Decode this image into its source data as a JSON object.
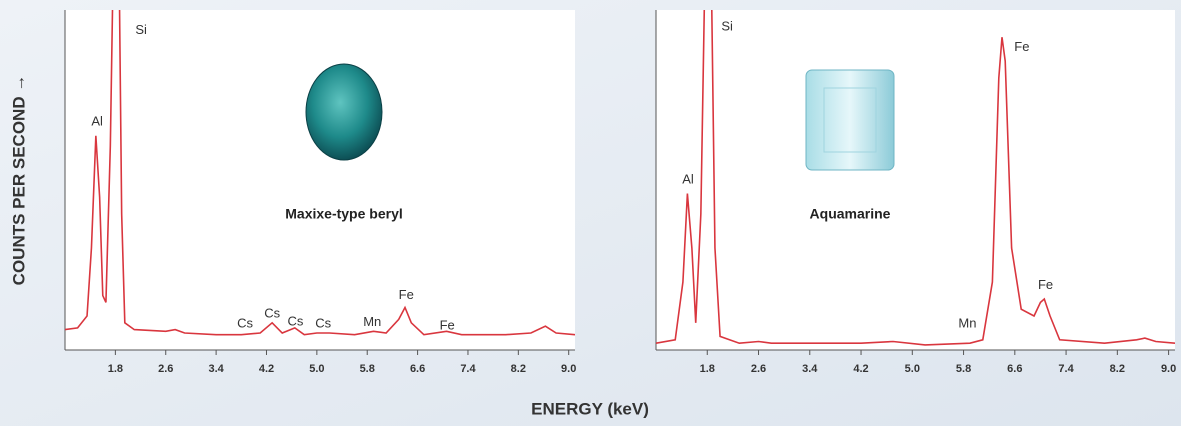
{
  "xlabel": "ENERGY (keV)",
  "ylabel": "COUNTS PER SECOND →",
  "chart_data": [
    {
      "type": "line",
      "title": "Maxixe-type beryl",
      "color": "#d9363e",
      "xlim": [
        1.0,
        9.1
      ],
      "ylim": [
        0,
        100
      ],
      "xticks": [
        1.8,
        2.6,
        3.4,
        4.2,
        {
          "value": 5,
          "label": "5.0"
        },
        5.8,
        6.6,
        7.4,
        8.2,
        {
          "value": 9,
          "label": "9.0"
        }
      ],
      "x": [
        1.0,
        1.2,
        1.35,
        1.42,
        1.49,
        1.55,
        1.6,
        1.65,
        1.72,
        1.78,
        1.85,
        1.9,
        1.95,
        2.1,
        2.6,
        2.75,
        2.9,
        3.4,
        3.8,
        4.1,
        4.29,
        4.45,
        4.65,
        4.8,
        5.0,
        5.2,
        5.6,
        5.9,
        6.1,
        6.3,
        6.4,
        6.5,
        6.7,
        7.06,
        7.3,
        8.0,
        8.4,
        8.63,
        8.8,
        9.1
      ],
      "values": [
        6,
        6.5,
        10,
        30,
        63,
        45,
        16,
        14,
        60,
        130,
        130,
        40,
        8,
        6,
        5.5,
        6,
        5,
        4.5,
        4.5,
        5,
        8,
        5,
        6.5,
        4.5,
        5,
        5,
        4.5,
        5.5,
        5,
        9,
        12.5,
        8,
        4.5,
        5.5,
        4.5,
        4.5,
        5,
        7,
        5,
        4.5
      ],
      "annotations": [
        {
          "text": "Al",
          "x": 1.51,
          "y": 67
        },
        {
          "text": "Si",
          "x": 2.21,
          "y": 94
        },
        {
          "text": "Cs",
          "x": 3.86,
          "y": 7.6
        },
        {
          "text": "Cs",
          "x": 4.29,
          "y": 10.6
        },
        {
          "text": "Cs",
          "x": 4.66,
          "y": 8.2
        },
        {
          "text": "Cs",
          "x": 5.1,
          "y": 7.6
        },
        {
          "text": "Mn",
          "x": 5.88,
          "y": 8
        },
        {
          "text": "Fe",
          "x": 6.42,
          "y": 16
        },
        {
          "text": "Fe",
          "x": 7.07,
          "y": 7
        }
      ]
    },
    {
      "type": "line",
      "title": "Aquamarine",
      "color": "#d9363e",
      "xlim": [
        1.0,
        9.1
      ],
      "ylim": [
        0,
        100
      ],
      "xticks": [
        1.8,
        2.6,
        3.4,
        4.2,
        {
          "value": 5,
          "label": "5.0"
        },
        5.8,
        6.6,
        7.4,
        8.2,
        {
          "value": 9,
          "label": "9.0"
        }
      ],
      "x": [
        1.0,
        1.3,
        1.42,
        1.49,
        1.56,
        1.62,
        1.7,
        1.78,
        1.85,
        1.92,
        2.0,
        2.3,
        2.6,
        2.8,
        3.4,
        4.2,
        4.7,
        5.2,
        5.9,
        6.1,
        6.25,
        6.35,
        6.4,
        6.45,
        6.55,
        6.7,
        6.9,
        7.0,
        7.06,
        7.15,
        7.3,
        8.0,
        8.5,
        8.63,
        8.8,
        9.1
      ],
      "values": [
        2,
        3,
        20,
        46,
        30,
        8,
        40,
        130,
        130,
        30,
        4,
        2,
        2.5,
        2,
        2,
        2,
        2.5,
        1.5,
        2,
        3,
        20,
        80,
        92,
        85,
        30,
        12,
        10,
        14,
        15,
        10,
        3,
        2,
        3,
        3.5,
        2.5,
        2
      ],
      "annotations": [
        {
          "text": "Al",
          "x": 1.5,
          "y": 50
        },
        {
          "text": "Si",
          "x": 2.11,
          "y": 95
        },
        {
          "text": "Mn",
          "x": 5.86,
          "y": 7.6
        },
        {
          "text": "Fe",
          "x": 6.71,
          "y": 89
        },
        {
          "text": "Fe",
          "x": 7.08,
          "y": 19
        }
      ]
    }
  ]
}
